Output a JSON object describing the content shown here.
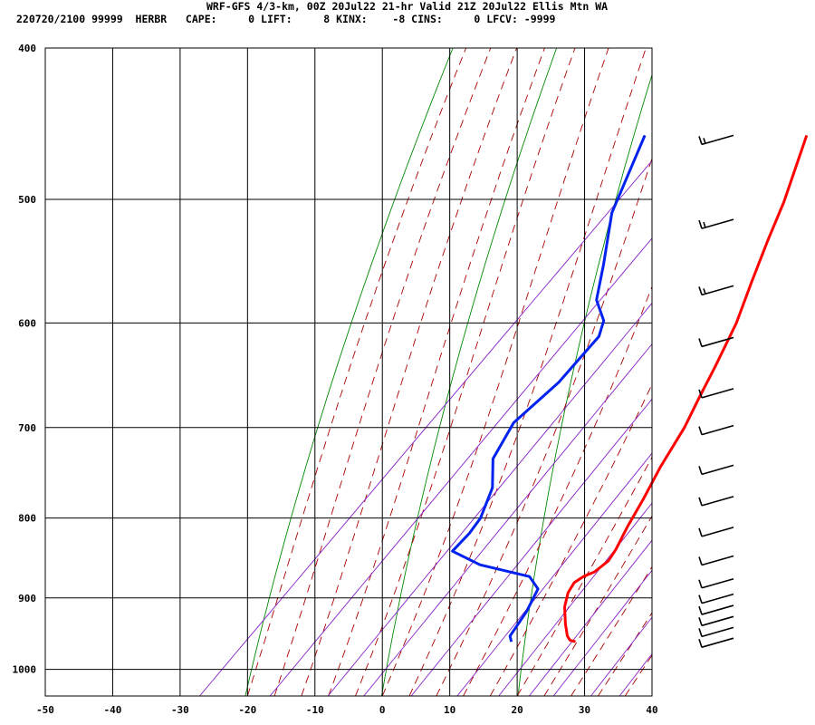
{
  "header": {
    "line1": "WRF-GFS 4/3-km, 00Z 20Jul22 21-hr Valid 21Z 20Jul22 Ellis Mtn WA",
    "line2": "220720/2100 99999  HERBR   CAPE:     0 LIFT:     8 KINX:    -8 CINS:     0 LFCV: -9999"
  },
  "colors": {
    "temperature": "#ff0000",
    "dewpoint": "#0022ee",
    "dry_adiabat": "#008800",
    "moist_adiabat": "#aa0000",
    "mixing_ratio": "#8822cc",
    "grid": "#000000",
    "wind": "#000000"
  },
  "chart_data": {
    "type": "skew-t",
    "x_axis": {
      "ticks": [
        -50,
        -40,
        -30,
        -20,
        -10,
        0,
        10,
        20,
        30,
        40
      ],
      "range": [
        -50,
        40
      ]
    },
    "y_axis": {
      "scale": "log",
      "ticks": [
        400,
        500,
        600,
        700,
        800,
        900,
        1000
      ],
      "range": [
        400,
        1040
      ]
    },
    "series": [
      {
        "key": "temperature",
        "points": [
          {
            "p": 455,
            "x": -16
          },
          {
            "p": 502,
            "x": -10
          },
          {
            "p": 531,
            "x": -7
          },
          {
            "p": 565,
            "x": -3.5
          },
          {
            "p": 600,
            "x": 0
          },
          {
            "p": 640,
            "x": 3
          },
          {
            "p": 670,
            "x": 5
          },
          {
            "p": 700,
            "x": 7
          },
          {
            "p": 742,
            "x": 9
          },
          {
            "p": 778,
            "x": 11
          },
          {
            "p": 810,
            "x": 12.5
          },
          {
            "p": 838,
            "x": 14
          },
          {
            "p": 852,
            "x": 14.5
          },
          {
            "p": 866,
            "x": 14
          },
          {
            "p": 872,
            "x": 13
          },
          {
            "p": 880,
            "x": 12.5
          },
          {
            "p": 893,
            "x": 13
          },
          {
            "p": 912,
            "x": 14.5
          },
          {
            "p": 935,
            "x": 17
          },
          {
            "p": 952,
            "x": 19
          },
          {
            "p": 958,
            "x": 20
          },
          {
            "p": 960,
            "x": 21
          }
        ]
      },
      {
        "key": "dewpoint",
        "points": [
          {
            "p": 455,
            "x": -40
          },
          {
            "p": 510,
            "x": -34
          },
          {
            "p": 550,
            "x": -28
          },
          {
            "p": 580,
            "x": -24
          },
          {
            "p": 598,
            "x": -20
          },
          {
            "p": 612,
            "x": -18.5
          },
          {
            "p": 655,
            "x": -18
          },
          {
            "p": 695,
            "x": -19
          },
          {
            "p": 733,
            "x": -17
          },
          {
            "p": 765,
            "x": -13
          },
          {
            "p": 800,
            "x": -10.5
          },
          {
            "p": 818,
            "x": -10
          },
          {
            "p": 840,
            "x": -10
          },
          {
            "p": 857,
            "x": -4
          },
          {
            "p": 872,
            "x": 5
          },
          {
            "p": 888,
            "x": 8
          },
          {
            "p": 918,
            "x": 9.5
          },
          {
            "p": 952,
            "x": 10.5
          },
          {
            "p": 960,
            "x": 11.5
          }
        ]
      }
    ],
    "wind_levels": [
      455,
      515,
      568,
      613,
      661,
      698,
      740,
      775,
      811,
      846,
      875,
      895,
      910,
      925,
      940,
      955
    ]
  }
}
